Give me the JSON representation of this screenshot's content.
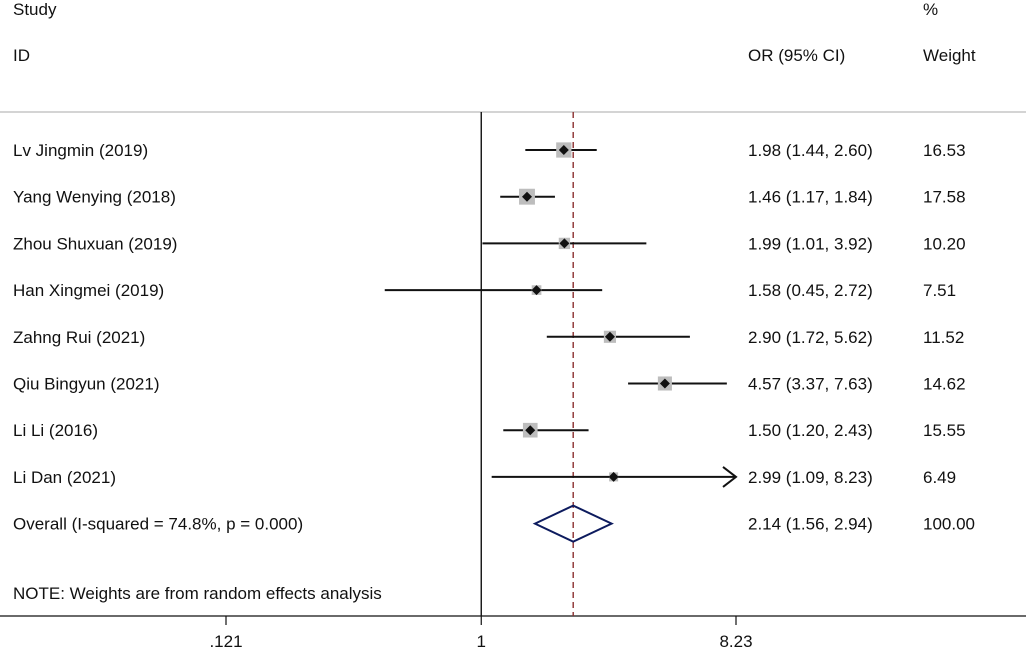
{
  "header": {
    "study_label": "Study",
    "id_label": "ID",
    "or_label": "OR (95% CI)",
    "pct_label": "%",
    "weight_label": "Weight"
  },
  "note": "NOTE: Weights are from random effects analysis",
  "colors": {
    "box": "#bdbdbd",
    "point": "#111111",
    "ci_line": "#111111",
    "diamond": "#0d1b5e",
    "dashed_line": "#8b2f2f",
    "null_line": "#111111"
  },
  "chart_data": {
    "type": "forest",
    "scale": "log",
    "xlim": [
      0.121,
      8.23
    ],
    "xticks": [
      {
        "value": 0.121,
        "label": ".121"
      },
      {
        "value": 1,
        "label": "1"
      },
      {
        "value": 8.23,
        "label": "8.23"
      }
    ],
    "null_value": 1,
    "overall_line_value": 2.14,
    "studies": [
      {
        "name": "Lv Jingmin (2019)",
        "or": 1.98,
        "lower": 1.44,
        "upper": 2.6,
        "ci_text": "1.98 (1.44, 2.60)",
        "weight": 16.53,
        "weight_text": "16.53"
      },
      {
        "name": "Yang Wenying (2018)",
        "or": 1.46,
        "lower": 1.17,
        "upper": 1.84,
        "ci_text": "1.46 (1.17, 1.84)",
        "weight": 17.58,
        "weight_text": "17.58"
      },
      {
        "name": "Zhou Shuxuan (2019)",
        "or": 1.99,
        "lower": 1.01,
        "upper": 3.92,
        "ci_text": "1.99 (1.01, 3.92)",
        "weight": 10.2,
        "weight_text": "10.20"
      },
      {
        "name": "Han Xingmei (2019)",
        "or": 1.58,
        "lower": 0.45,
        "upper": 2.72,
        "ci_text": "1.58 (0.45, 2.72)",
        "weight": 7.51,
        "weight_text": "7.51"
      },
      {
        "name": "Zahng Rui (2021)",
        "or": 2.9,
        "lower": 1.72,
        "upper": 5.62,
        "ci_text": "2.90 (1.72, 5.62)",
        "weight": 11.52,
        "weight_text": "11.52"
      },
      {
        "name": "Qiu Bingyun (2021)",
        "or": 4.57,
        "lower": 3.37,
        "upper": 7.63,
        "ci_text": "4.57 (3.37, 7.63)",
        "weight": 14.62,
        "weight_text": "14.62"
      },
      {
        "name": "Li Li (2016)",
        "or": 1.5,
        "lower": 1.2,
        "upper": 2.43,
        "ci_text": "1.50 (1.20, 2.43)",
        "weight": 15.55,
        "weight_text": "15.55"
      },
      {
        "name": "Li Dan (2021)",
        "or": 2.99,
        "lower": 1.09,
        "upper": 8.23,
        "ci_text": "2.99 (1.09, 8.23)",
        "weight": 6.49,
        "weight_text": "6.49"
      }
    ],
    "overall": {
      "name": "Overall  (I-squared = 74.8%, p = 0.000)",
      "or": 2.14,
      "lower": 1.56,
      "upper": 2.94,
      "ci_text": "2.14 (1.56, 2.94)",
      "weight": 100.0,
      "weight_text": "100.00"
    }
  }
}
